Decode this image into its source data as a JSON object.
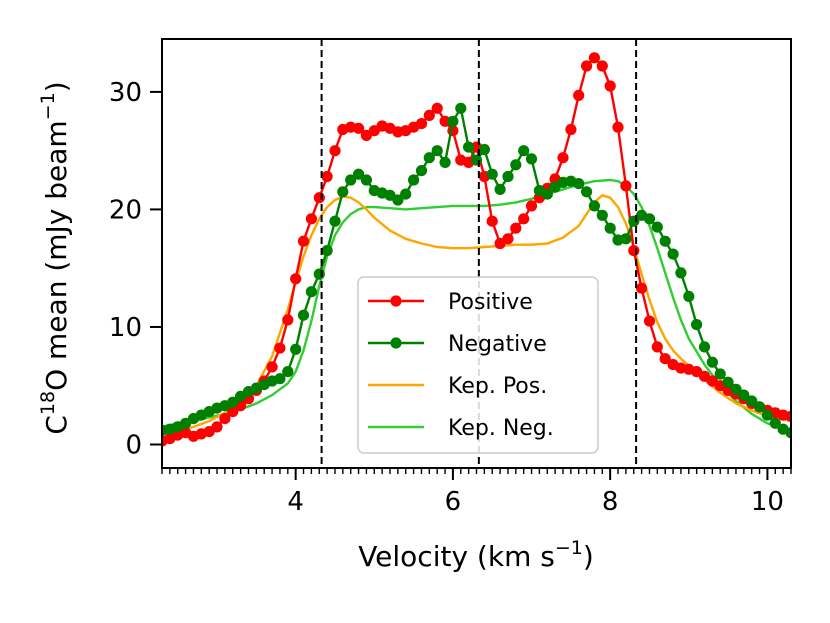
{
  "chart_data": {
    "type": "line",
    "xlabel": {
      "base": "Velocity (km s",
      "sup": "−1",
      "tail": ")"
    },
    "ylabel": {
      "pre": "C",
      "sup1": "18",
      "mid": "O mean (mJy beam",
      "sup2": "−1",
      "tail": ")"
    },
    "xlim": [
      2.3,
      10.3
    ],
    "ylim": [
      -2,
      34.5
    ],
    "xticks": [
      4,
      6,
      8,
      10
    ],
    "xtick_labels": [
      "4",
      "6",
      "8",
      "10"
    ],
    "yticks": [
      0,
      10,
      20,
      30
    ],
    "ytick_labels": [
      "0",
      "10",
      "20",
      "30"
    ],
    "minor_xtick_step": 0.1,
    "vlines": [
      4.33,
      6.33,
      8.33
    ],
    "legend_position": "center",
    "grid": false,
    "series": [
      {
        "name": "Positive",
        "color": "#ff0000",
        "markers": true,
        "x": [
          2.3,
          2.4,
          2.5,
          2.6,
          2.7,
          2.8,
          2.9,
          3.0,
          3.1,
          3.2,
          3.3,
          3.4,
          3.5,
          3.6,
          3.7,
          3.8,
          3.9,
          4.0,
          4.1,
          4.2,
          4.3,
          4.4,
          4.5,
          4.6,
          4.7,
          4.8,
          4.9,
          5.0,
          5.1,
          5.2,
          5.3,
          5.4,
          5.5,
          5.6,
          5.7,
          5.8,
          5.9,
          6.0,
          6.1,
          6.2,
          6.3,
          6.4,
          6.5,
          6.6,
          6.7,
          6.8,
          6.9,
          7.0,
          7.1,
          7.2,
          7.3,
          7.4,
          7.5,
          7.6,
          7.7,
          7.8,
          7.9,
          8.0,
          8.1,
          8.2,
          8.3,
          8.4,
          8.5,
          8.6,
          8.7,
          8.8,
          8.9,
          9.0,
          9.1,
          9.2,
          9.3,
          9.4,
          9.5,
          9.6,
          9.7,
          9.8,
          9.9,
          10.0,
          10.1,
          10.2,
          10.3
        ],
        "y": [
          0.3,
          0.5,
          0.8,
          1.0,
          0.7,
          0.9,
          1.1,
          1.5,
          2.2,
          2.8,
          3.3,
          3.9,
          4.6,
          5.4,
          6.6,
          8.2,
          10.6,
          14.1,
          17.3,
          19.2,
          21.0,
          22.8,
          25.0,
          26.8,
          27.0,
          26.9,
          26.3,
          26.7,
          27.1,
          26.9,
          26.6,
          26.7,
          27.0,
          27.3,
          28.0,
          28.6,
          27.5,
          26.7,
          24.2,
          24.0,
          25.3,
          22.8,
          19.0,
          17.1,
          17.5,
          18.4,
          19.2,
          20.3,
          21.0,
          21.8,
          22.6,
          24.4,
          26.8,
          29.7,
          32.2,
          32.9,
          32.2,
          30.5,
          27.0,
          22.0,
          16.5,
          13.3,
          10.5,
          8.3,
          7.3,
          6.8,
          6.5,
          6.4,
          6.2,
          5.8,
          5.4,
          5.0,
          4.6,
          4.3,
          3.9,
          3.5,
          3.2,
          2.9,
          2.7,
          2.5,
          2.4
        ]
      },
      {
        "name": "Negative",
        "color": "#008000",
        "markers": true,
        "x": [
          2.3,
          2.4,
          2.5,
          2.6,
          2.7,
          2.8,
          2.9,
          3.0,
          3.1,
          3.2,
          3.3,
          3.4,
          3.5,
          3.6,
          3.7,
          3.8,
          3.9,
          4.0,
          4.1,
          4.2,
          4.3,
          4.4,
          4.5,
          4.6,
          4.7,
          4.8,
          4.9,
          5.0,
          5.1,
          5.2,
          5.3,
          5.4,
          5.5,
          5.6,
          5.7,
          5.8,
          5.9,
          6.0,
          6.1,
          6.2,
          6.3,
          6.4,
          6.5,
          6.6,
          6.7,
          6.8,
          6.9,
          7.0,
          7.1,
          7.2,
          7.3,
          7.4,
          7.5,
          7.6,
          7.7,
          7.8,
          7.9,
          8.0,
          8.1,
          8.2,
          8.3,
          8.4,
          8.5,
          8.6,
          8.7,
          8.8,
          8.9,
          9.0,
          9.1,
          9.2,
          9.3,
          9.4,
          9.5,
          9.6,
          9.7,
          9.8,
          9.9,
          10.0,
          10.1,
          10.2,
          10.3
        ],
        "y": [
          1.2,
          1.3,
          1.5,
          1.8,
          2.2,
          2.5,
          2.8,
          3.1,
          3.3,
          3.6,
          4.1,
          4.5,
          4.8,
          5.1,
          5.4,
          5.6,
          6.2,
          8.1,
          11.0,
          13.0,
          14.5,
          16.5,
          19.0,
          21.5,
          22.5,
          23.0,
          22.5,
          21.6,
          21.4,
          21.2,
          20.8,
          21.3,
          22.5,
          23.3,
          24.4,
          25.0,
          24.0,
          27.5,
          28.6,
          25.3,
          24.2,
          25.1,
          23.0,
          21.7,
          22.8,
          23.8,
          25.0,
          24.3,
          21.6,
          21.3,
          21.9,
          22.3,
          22.4,
          22.2,
          21.5,
          20.3,
          19.5,
          18.4,
          17.4,
          17.5,
          19.0,
          19.5,
          19.2,
          18.5,
          17.3,
          16.2,
          14.6,
          12.6,
          10.2,
          8.3,
          7.0,
          6.0,
          5.3,
          4.7,
          4.2,
          3.7,
          3.2,
          2.5,
          1.8,
          1.3,
          1.0
        ]
      },
      {
        "name": "Kep. Pos.",
        "color": "#ffa500",
        "markers": false,
        "x": [
          2.3,
          2.5,
          2.7,
          2.9,
          3.1,
          3.3,
          3.5,
          3.7,
          3.9,
          4.0,
          4.1,
          4.2,
          4.3,
          4.4,
          4.5,
          4.6,
          4.7,
          4.8,
          4.9,
          5.0,
          5.2,
          5.4,
          5.6,
          5.8,
          6.0,
          6.2,
          6.4,
          6.6,
          6.8,
          7.0,
          7.2,
          7.4,
          7.6,
          7.7,
          7.8,
          7.9,
          8.0,
          8.1,
          8.2,
          8.3,
          8.4,
          8.5,
          8.6,
          8.7,
          8.8,
          8.9,
          9.0,
          9.2,
          9.4,
          9.6,
          9.8,
          10.0,
          10.3
        ],
        "y": [
          1.0,
          1.2,
          1.5,
          2.0,
          2.7,
          3.6,
          5.0,
          7.5,
          11.5,
          13.8,
          16.0,
          17.8,
          19.2,
          20.2,
          20.8,
          21.1,
          21.0,
          20.6,
          20.0,
          19.3,
          18.2,
          17.5,
          17.1,
          16.8,
          16.7,
          16.7,
          16.8,
          16.9,
          17.0,
          17.0,
          17.1,
          17.6,
          18.6,
          19.6,
          20.6,
          21.2,
          21.0,
          20.2,
          18.8,
          16.8,
          14.5,
          12.3,
          10.4,
          9.0,
          8.0,
          7.3,
          6.7,
          5.5,
          4.4,
          3.5,
          2.9,
          2.4,
          2.0
        ]
      },
      {
        "name": "Kep. Neg.",
        "color": "#32cd32",
        "markers": false,
        "x": [
          2.3,
          2.5,
          2.7,
          2.9,
          3.1,
          3.3,
          3.5,
          3.7,
          3.9,
          4.0,
          4.1,
          4.2,
          4.3,
          4.4,
          4.5,
          4.6,
          4.7,
          4.8,
          4.9,
          5.0,
          5.2,
          5.4,
          5.6,
          5.8,
          6.0,
          6.2,
          6.4,
          6.6,
          6.8,
          7.0,
          7.2,
          7.4,
          7.6,
          7.8,
          8.0,
          8.1,
          8.2,
          8.3,
          8.4,
          8.5,
          8.6,
          8.7,
          8.8,
          8.9,
          9.0,
          9.2,
          9.4,
          9.6,
          9.8,
          10.0,
          10.3
        ],
        "y": [
          1.5,
          1.8,
          2.0,
          2.3,
          2.6,
          3.0,
          3.5,
          4.2,
          5.2,
          6.2,
          8.0,
          10.5,
          13.5,
          16.0,
          17.8,
          18.9,
          19.6,
          20.0,
          20.2,
          20.2,
          20.1,
          20.0,
          20.1,
          20.2,
          20.3,
          20.3,
          20.3,
          20.4,
          20.6,
          20.9,
          21.3,
          21.7,
          22.1,
          22.4,
          22.5,
          22.4,
          22.0,
          21.3,
          20.2,
          18.6,
          16.7,
          14.6,
          12.5,
          10.6,
          9.0,
          6.8,
          5.0,
          3.7,
          2.6,
          1.8,
          1.2
        ]
      }
    ]
  }
}
